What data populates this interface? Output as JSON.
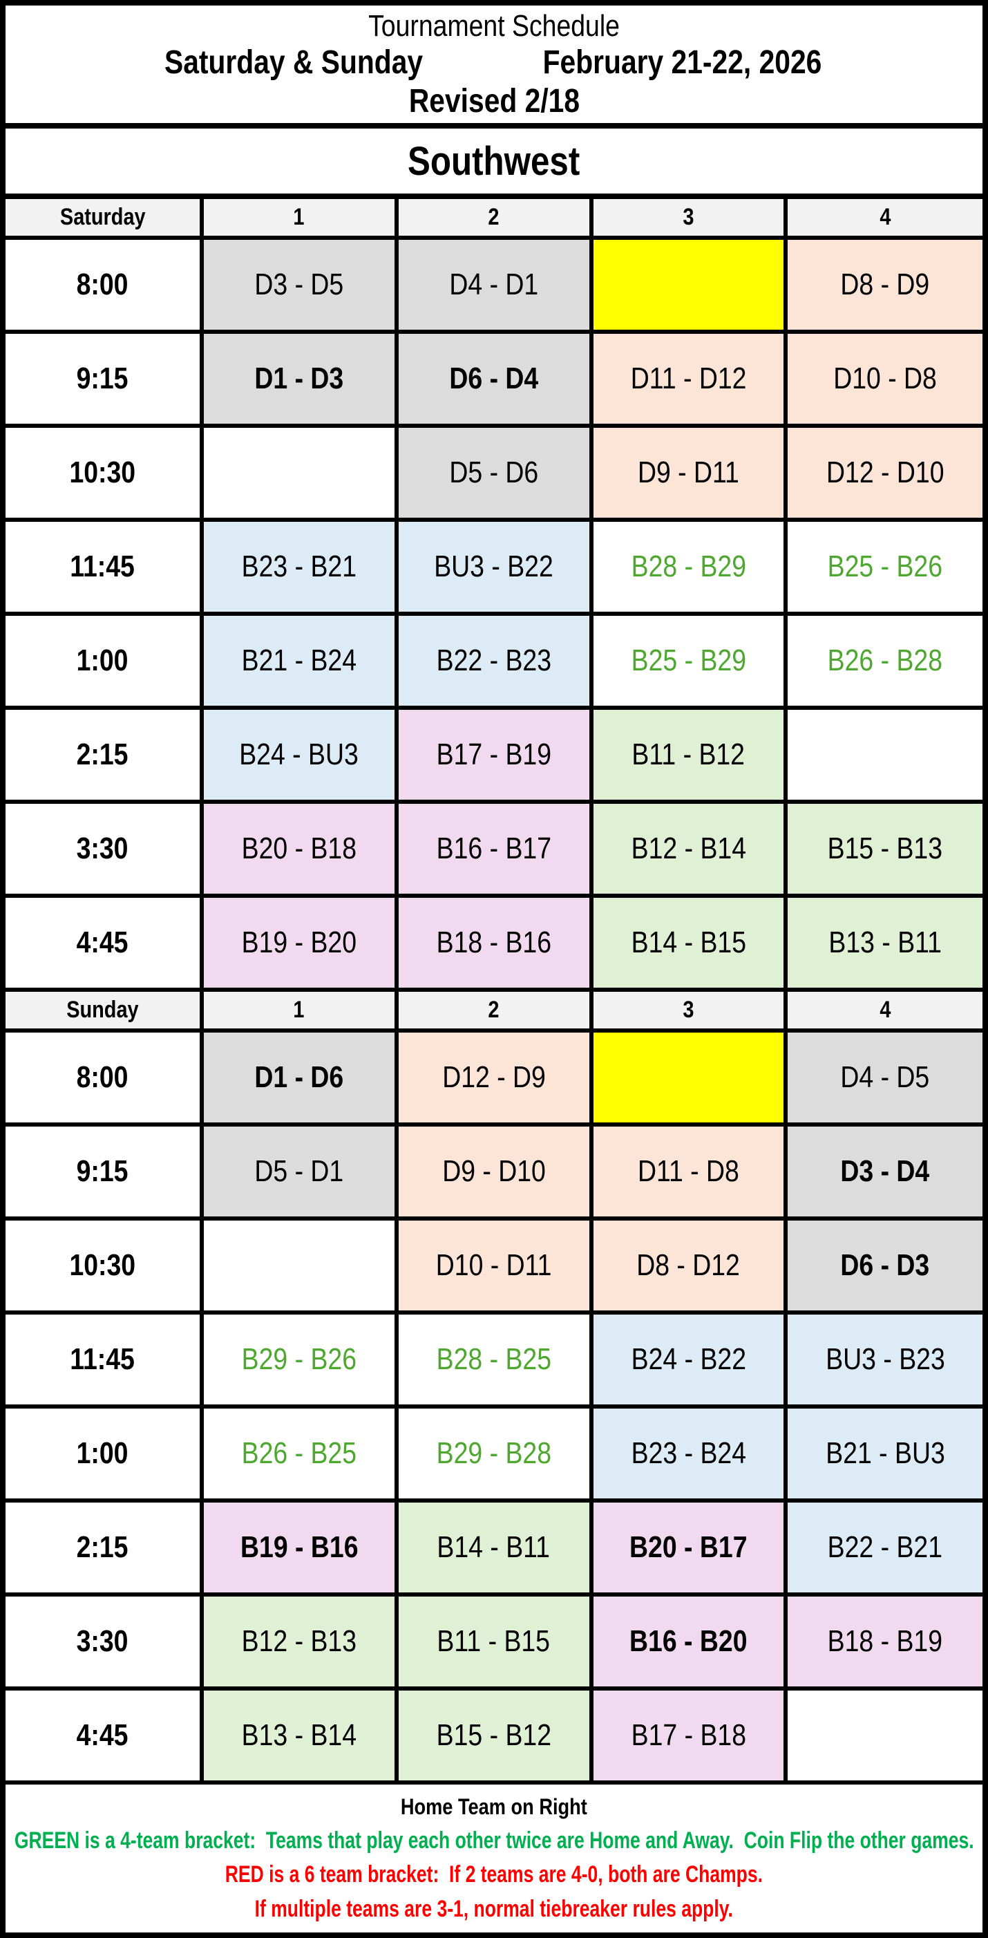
{
  "title": {
    "line1": "Tournament Schedule",
    "days": "Saturday & Sunday",
    "dates": "February 21-22, 2026",
    "revised": "Revised 2/18"
  },
  "region": "Southwest",
  "columns": [
    "1",
    "2",
    "3",
    "4"
  ],
  "colors": {
    "white": "#FFFFFF",
    "gray": "#DCDCDC",
    "peach": "#FCE4D6",
    "yellow": "#FFFF00",
    "blue": "#DDEBF7",
    "pink": "#F1D9F0",
    "green_bg": "#DFF0D4",
    "header_bg": "#F2F2F2",
    "green_text": "#4EA72E",
    "footer_green": "#00B050",
    "footer_red": "#FF0000",
    "black": "#000000"
  },
  "sections": [
    {
      "day": "Saturday",
      "rows": [
        {
          "time": "8:00",
          "cells": [
            {
              "text": "D3 - D5",
              "bg": "gray"
            },
            {
              "text": "D4 - D1",
              "bg": "gray"
            },
            {
              "text": "",
              "bg": "yellow"
            },
            {
              "text": "D8 - D9",
              "bg": "peach"
            }
          ]
        },
        {
          "time": "9:15",
          "cells": [
            {
              "text": "D1 - D3",
              "bg": "gray",
              "bold": true
            },
            {
              "text": "D6 - D4",
              "bg": "gray",
              "bold": true
            },
            {
              "text": "D11 - D12",
              "bg": "peach"
            },
            {
              "text": "D10 - D8",
              "bg": "peach"
            }
          ]
        },
        {
          "time": "10:30",
          "cells": [
            {
              "text": "",
              "bg": "white"
            },
            {
              "text": "D5 - D6",
              "bg": "gray"
            },
            {
              "text": "D9 - D11",
              "bg": "peach"
            },
            {
              "text": "D12 - D10",
              "bg": "peach"
            }
          ]
        },
        {
          "time": "11:45",
          "cells": [
            {
              "text": "B23 - B21",
              "bg": "blue"
            },
            {
              "text": "BU3 - B22",
              "bg": "blue"
            },
            {
              "text": "B28 - B29",
              "bg": "white",
              "fg": "green_text"
            },
            {
              "text": "B25 - B26",
              "bg": "white",
              "fg": "green_text"
            }
          ]
        },
        {
          "time": "1:00",
          "cells": [
            {
              "text": "B21 - B24",
              "bg": "blue"
            },
            {
              "text": "B22 - B23",
              "bg": "blue"
            },
            {
              "text": "B25 - B29",
              "bg": "white",
              "fg": "green_text"
            },
            {
              "text": "B26 - B28",
              "bg": "white",
              "fg": "green_text"
            }
          ]
        },
        {
          "time": "2:15",
          "cells": [
            {
              "text": "B24 - BU3",
              "bg": "blue"
            },
            {
              "text": "B17 - B19",
              "bg": "pink"
            },
            {
              "text": "B11 - B12",
              "bg": "green_bg"
            },
            {
              "text": "",
              "bg": "white"
            }
          ]
        },
        {
          "time": "3:30",
          "cells": [
            {
              "text": "B20 - B18",
              "bg": "pink"
            },
            {
              "text": "B16 - B17",
              "bg": "pink"
            },
            {
              "text": "B12 - B14",
              "bg": "green_bg"
            },
            {
              "text": "B15 - B13",
              "bg": "green_bg"
            }
          ]
        },
        {
          "time": "4:45",
          "cells": [
            {
              "text": "B19 - B20",
              "bg": "pink"
            },
            {
              "text": "B18 - B16",
              "bg": "pink"
            },
            {
              "text": "B14 - B15",
              "bg": "green_bg"
            },
            {
              "text": "B13 - B11",
              "bg": "green_bg"
            }
          ]
        }
      ]
    },
    {
      "day": "Sunday",
      "rows": [
        {
          "time": "8:00",
          "cells": [
            {
              "text": "D1 - D6",
              "bg": "gray",
              "bold": true
            },
            {
              "text": "D12 - D9",
              "bg": "peach"
            },
            {
              "text": "",
              "bg": "yellow"
            },
            {
              "text": "D4 - D5",
              "bg": "gray"
            }
          ]
        },
        {
          "time": "9:15",
          "cells": [
            {
              "text": "D5 - D1",
              "bg": "gray"
            },
            {
              "text": "D9 - D10",
              "bg": "peach"
            },
            {
              "text": "D11 - D8",
              "bg": "peach"
            },
            {
              "text": "D3 - D4",
              "bg": "gray",
              "bold": true
            }
          ]
        },
        {
          "time": "10:30",
          "cells": [
            {
              "text": "",
              "bg": "white"
            },
            {
              "text": "D10 - D11",
              "bg": "peach"
            },
            {
              "text": "D8 - D12",
              "bg": "peach"
            },
            {
              "text": "D6 - D3",
              "bg": "gray",
              "bold": true
            }
          ]
        },
        {
          "time": "11:45",
          "cells": [
            {
              "text": "B29 - B26",
              "bg": "white",
              "fg": "green_text"
            },
            {
              "text": "B28 - B25",
              "bg": "white",
              "fg": "green_text"
            },
            {
              "text": "B24 - B22",
              "bg": "blue"
            },
            {
              "text": "BU3 - B23",
              "bg": "blue"
            }
          ]
        },
        {
          "time": "1:00",
          "cells": [
            {
              "text": "B26 - B25",
              "bg": "white",
              "fg": "green_text"
            },
            {
              "text": "B29 - B28",
              "bg": "white",
              "fg": "green_text"
            },
            {
              "text": "B23 - B24",
              "bg": "blue"
            },
            {
              "text": "B21 - BU3",
              "bg": "blue"
            }
          ]
        },
        {
          "time": "2:15",
          "cells": [
            {
              "text": "B19 - B16",
              "bg": "pink",
              "bold": true
            },
            {
              "text": "B14 - B11",
              "bg": "green_bg"
            },
            {
              "text": "B20 - B17",
              "bg": "pink",
              "bold": true
            },
            {
              "text": "B22 - B21",
              "bg": "blue"
            }
          ]
        },
        {
          "time": "3:30",
          "cells": [
            {
              "text": "B12 - B13",
              "bg": "green_bg"
            },
            {
              "text": "B11 - B15",
              "bg": "green_bg"
            },
            {
              "text": "B16 - B20",
              "bg": "pink",
              "bold": true
            },
            {
              "text": "B18 - B19",
              "bg": "pink"
            }
          ]
        },
        {
          "time": "4:45",
          "cells": [
            {
              "text": "B13 - B14",
              "bg": "green_bg"
            },
            {
              "text": "B15 - B12",
              "bg": "green_bg"
            },
            {
              "text": "B17 - B18",
              "bg": "pink"
            },
            {
              "text": "",
              "bg": "white"
            }
          ]
        }
      ]
    }
  ],
  "footer": {
    "home": "Home Team on Right",
    "green_line": "GREEN is a 4-team bracket:  Teams that play each other twice are Home and Away.  Coin Flip the other games.",
    "red_line1": "RED is a 6 team bracket:  If 2 teams are 4-0, both are Champs.",
    "red_line2": "If multiple teams are 3-1, normal tiebreaker rules apply."
  }
}
